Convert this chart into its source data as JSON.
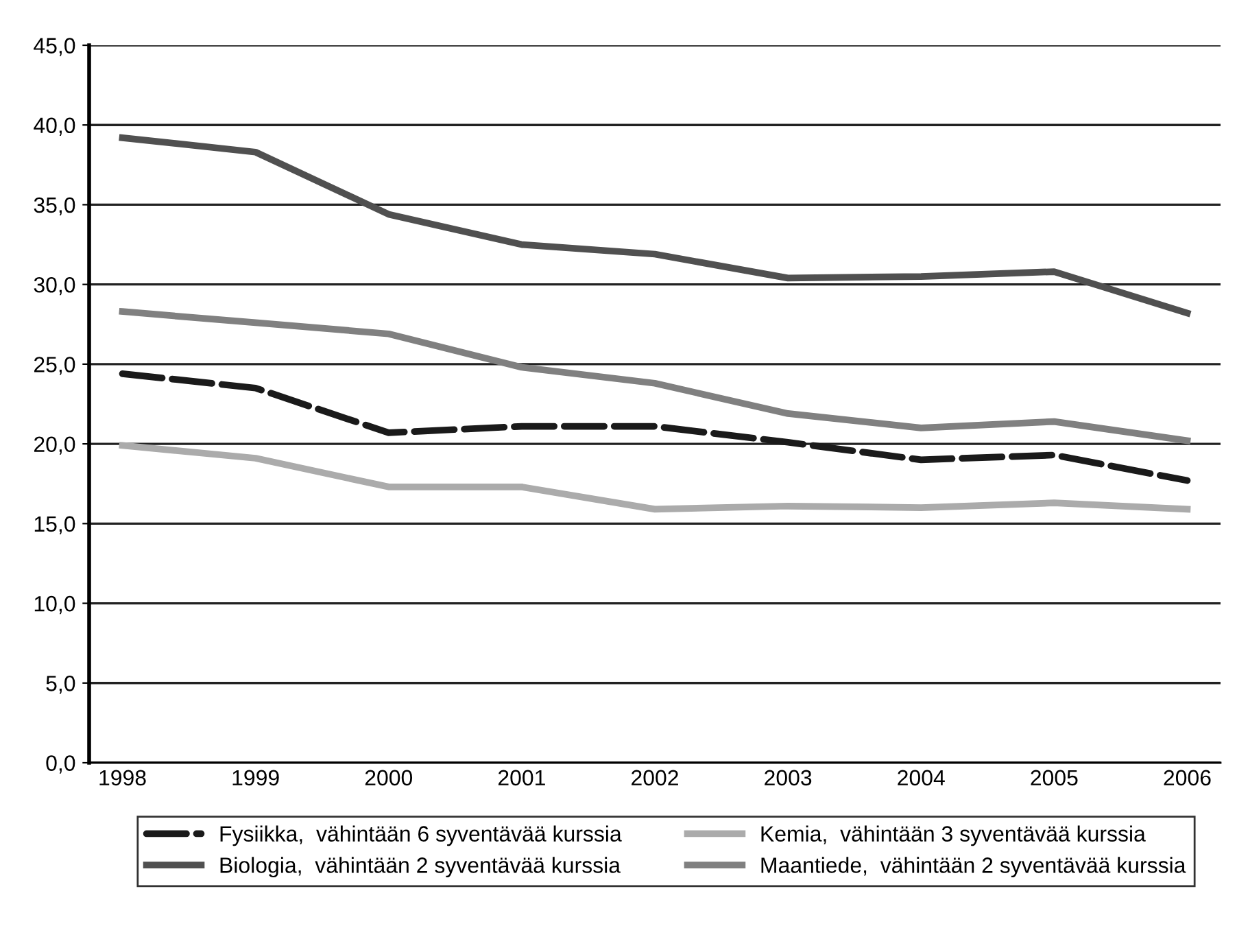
{
  "chart_data": {
    "type": "line",
    "categories": [
      "1998",
      "1999",
      "2000",
      "2001",
      "2002",
      "2003",
      "2004",
      "2005",
      "2006"
    ],
    "series": [
      {
        "name": "Fysiikka,  vähintään 6 syventävää kurssia",
        "color": "#1a1a1a",
        "line_style": "dashed",
        "values": [
          24.4,
          23.5,
          20.7,
          21.1,
          21.1,
          20.1,
          19.0,
          19.3,
          17.7
        ]
      },
      {
        "name": "Biologia,  vähintään 2 syventävää kurssia",
        "color": "#505050",
        "values": [
          39.2,
          38.3,
          34.4,
          32.5,
          31.9,
          30.4,
          30.5,
          30.8,
          28.2
        ]
      },
      {
        "name": "Kemia,  vähintään 3 syventävää kurssia",
        "color": "#ababab",
        "values": [
          19.9,
          19.1,
          17.3,
          17.3,
          15.9,
          16.1,
          16.0,
          16.3,
          15.9
        ]
      },
      {
        "name": "Maantiede,  vähintään 2 syventävää kurssia",
        "color": "#808080",
        "values": [
          28.3,
          27.6,
          26.9,
          24.8,
          23.8,
          21.9,
          21.0,
          21.4,
          20.2
        ]
      }
    ],
    "ylim": [
      0,
      45
    ],
    "yticks": [
      {
        "value": 0,
        "label": "0,0"
      },
      {
        "value": 5,
        "label": "5,0"
      },
      {
        "value": 10,
        "label": "10,0"
      },
      {
        "value": 15,
        "label": "15,0"
      },
      {
        "value": 20,
        "label": "20,0"
      },
      {
        "value": 25,
        "label": "25,0"
      },
      {
        "value": 30,
        "label": "30,0"
      },
      {
        "value": 35,
        "label": "35,0"
      },
      {
        "value": 40,
        "label": "40,0"
      },
      {
        "value": 45,
        "label": "45,0"
      }
    ],
    "grid": "y",
    "legend": "bottom",
    "marker": "none"
  }
}
